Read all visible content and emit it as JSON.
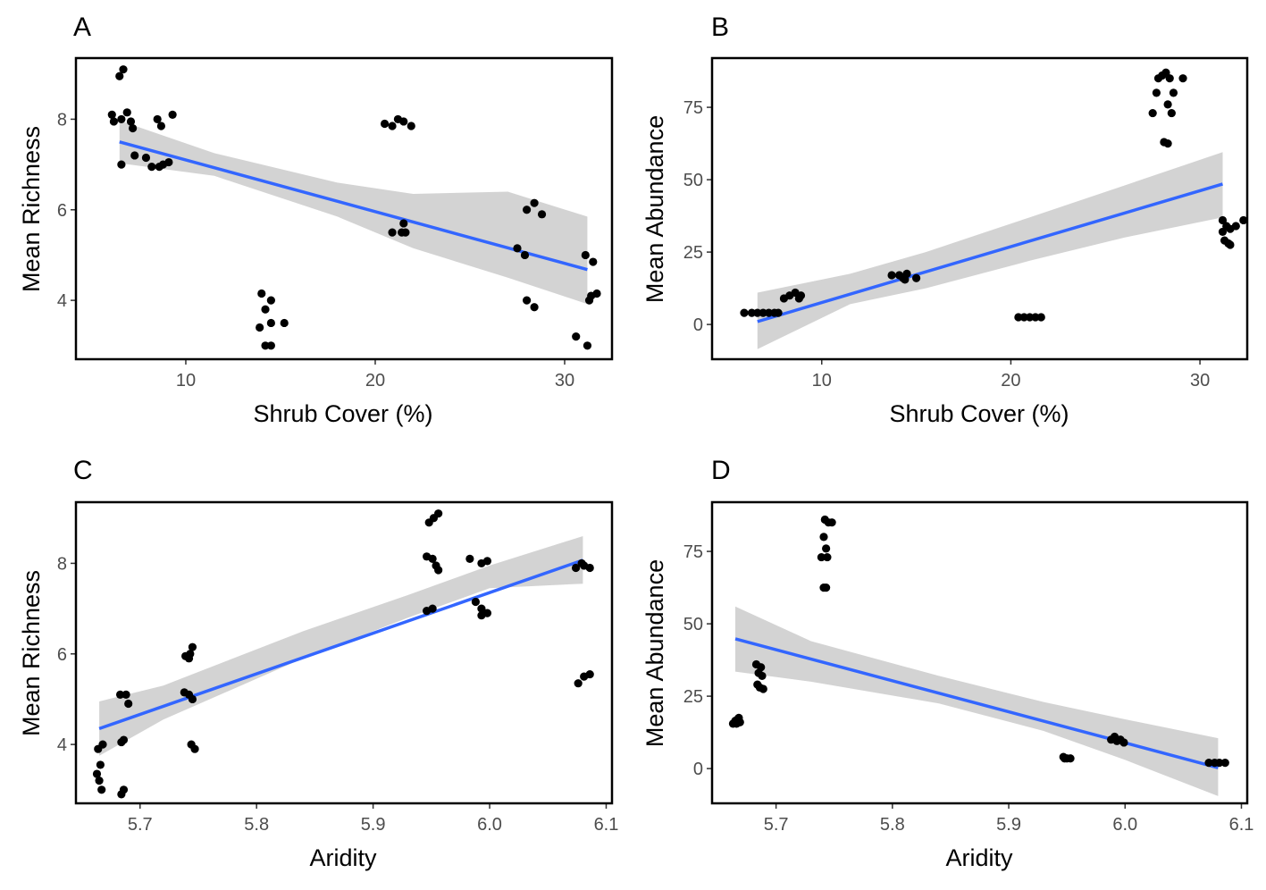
{
  "chart_data": [
    {
      "panel": "A",
      "type": "scatter",
      "xlabel": "Shrub Cover (%)",
      "ylabel": "Mean Richness",
      "xlim": [
        4.2,
        32.5
      ],
      "ylim": [
        2.7,
        9.35
      ],
      "xticks": [
        10,
        20,
        30
      ],
      "yticks": [
        4,
        6,
        8
      ],
      "points": [
        [
          6.1,
          8.1
        ],
        [
          6.2,
          7.95
        ],
        [
          6.6,
          8.0
        ],
        [
          6.5,
          8.95
        ],
        [
          6.7,
          9.1
        ],
        [
          6.9,
          8.15
        ],
        [
          7.1,
          7.95
        ],
        [
          7.2,
          7.8
        ],
        [
          6.6,
          7.0
        ],
        [
          7.3,
          7.2
        ],
        [
          7.9,
          7.15
        ],
        [
          8.2,
          6.95
        ],
        [
          8.6,
          6.95
        ],
        [
          8.8,
          7.0
        ],
        [
          9.1,
          7.05
        ],
        [
          8.5,
          8.0
        ],
        [
          8.7,
          7.85
        ],
        [
          9.3,
          8.1
        ],
        [
          20.5,
          7.9
        ],
        [
          20.9,
          7.85
        ],
        [
          21.2,
          8.0
        ],
        [
          21.5,
          7.95
        ],
        [
          21.9,
          7.85
        ],
        [
          20.9,
          5.5
        ],
        [
          21.4,
          5.5
        ],
        [
          21.6,
          5.5
        ],
        [
          21.5,
          5.7
        ],
        [
          14.0,
          4.15
        ],
        [
          14.2,
          3.8
        ],
        [
          14.5,
          4.0
        ],
        [
          13.9,
          3.4
        ],
        [
          14.5,
          3.5
        ],
        [
          15.2,
          3.5
        ],
        [
          14.2,
          3.0
        ],
        [
          14.5,
          3.0
        ],
        [
          27.5,
          5.15
        ],
        [
          27.9,
          5.0
        ],
        [
          28.0,
          6.0
        ],
        [
          28.4,
          6.15
        ],
        [
          28.8,
          5.9
        ],
        [
          28.0,
          4.0
        ],
        [
          28.4,
          3.85
        ],
        [
          31.1,
          5.0
        ],
        [
          31.5,
          4.85
        ],
        [
          31.3,
          4.0
        ],
        [
          31.4,
          4.1
        ],
        [
          31.7,
          4.15
        ],
        [
          30.6,
          3.2
        ],
        [
          31.2,
          3.0
        ]
      ],
      "fit": {
        "x": [
          6.5,
          31.2
        ],
        "y": [
          7.5,
          4.68
        ]
      },
      "ci_upper": [
        7.97,
        7.25,
        6.6,
        6.35,
        6.4,
        5.85
      ],
      "ci_lower": [
        7.03,
        6.75,
        5.85,
        5.15,
        4.5,
        3.92
      ],
      "ci_x": [
        6.5,
        11.5,
        18.0,
        22.0,
        27.0,
        31.2
      ]
    },
    {
      "panel": "B",
      "type": "scatter",
      "xlabel": "Shrub Cover (%)",
      "ylabel": "Mean Abundance",
      "xlim": [
        4.2,
        32.5
      ],
      "ylim": [
        -12,
        92
      ],
      "xticks": [
        10,
        20,
        30
      ],
      "yticks": [
        0,
        25,
        50,
        75
      ],
      "points": [
        [
          5.9,
          4
        ],
        [
          6.3,
          4
        ],
        [
          6.6,
          4
        ],
        [
          6.9,
          4
        ],
        [
          7.2,
          4
        ],
        [
          7.5,
          4
        ],
        [
          7.7,
          4
        ],
        [
          8.0,
          9
        ],
        [
          8.3,
          10
        ],
        [
          8.6,
          11
        ],
        [
          8.9,
          10
        ],
        [
          8.8,
          9
        ],
        [
          13.7,
          17
        ],
        [
          14.1,
          17
        ],
        [
          14.3,
          16
        ],
        [
          14.5,
          17.5
        ],
        [
          14.4,
          15.5
        ],
        [
          15.0,
          16
        ],
        [
          20.4,
          2.5
        ],
        [
          20.7,
          2.5
        ],
        [
          21.0,
          2.5
        ],
        [
          21.3,
          2.5
        ],
        [
          21.6,
          2.5
        ],
        [
          27.5,
          73
        ],
        [
          27.7,
          80
        ],
        [
          27.8,
          85
        ],
        [
          28.0,
          86
        ],
        [
          28.2,
          87
        ],
        [
          28.4,
          85
        ],
        [
          28.6,
          80
        ],
        [
          28.3,
          76
        ],
        [
          28.5,
          73
        ],
        [
          28.1,
          63
        ],
        [
          28.3,
          62.5
        ],
        [
          29.1,
          85
        ],
        [
          31.2,
          36
        ],
        [
          31.4,
          34
        ],
        [
          31.6,
          33
        ],
        [
          31.9,
          34
        ],
        [
          32.3,
          36
        ],
        [
          31.3,
          29
        ],
        [
          31.5,
          28
        ],
        [
          31.6,
          27.5
        ],
        [
          31.2,
          32
        ]
      ],
      "fit": {
        "x": [
          6.6,
          31.2
        ],
        "y": [
          1,
          48.5
        ]
      },
      "ci_upper": [
        11,
        17.5,
        25,
        37,
        48,
        59.5
      ],
      "ci_lower": [
        -8.5,
        7,
        12.5,
        22,
        30,
        37
      ],
      "ci_x": [
        6.6,
        11.5,
        15.5,
        21.0,
        26.0,
        31.2
      ]
    },
    {
      "panel": "C",
      "type": "scatter",
      "xlabel": "Aridity",
      "ylabel": "Mean Richness",
      "xlim": [
        5.645,
        6.105
      ],
      "ylim": [
        2.7,
        9.35
      ],
      "xticks": [
        5.7,
        5.8,
        5.9,
        6.0,
        6.1
      ],
      "yticks": [
        4,
        6,
        8
      ],
      "points": [
        [
          5.664,
          3.9
        ],
        [
          5.668,
          4.0
        ],
        [
          5.666,
          3.55
        ],
        [
          5.663,
          3.35
        ],
        [
          5.665,
          3.2
        ],
        [
          5.667,
          3.0
        ],
        [
          5.683,
          5.1
        ],
        [
          5.688,
          5.1
        ],
        [
          5.69,
          4.9
        ],
        [
          5.684,
          4.05
        ],
        [
          5.686,
          4.1
        ],
        [
          5.684,
          2.9
        ],
        [
          5.686,
          3.0
        ],
        [
          5.739,
          5.95
        ],
        [
          5.743,
          6.0
        ],
        [
          5.745,
          6.15
        ],
        [
          5.742,
          5.9
        ],
        [
          5.738,
          5.15
        ],
        [
          5.742,
          5.1
        ],
        [
          5.745,
          5.0
        ],
        [
          5.744,
          4.0
        ],
        [
          5.747,
          3.9
        ],
        [
          5.948,
          8.9
        ],
        [
          5.952,
          9.0
        ],
        [
          5.956,
          9.1
        ],
        [
          5.946,
          8.15
        ],
        [
          5.951,
          8.1
        ],
        [
          5.954,
          7.95
        ],
        [
          5.956,
          7.85
        ],
        [
          5.946,
          6.95
        ],
        [
          5.951,
          7.0
        ],
        [
          5.983,
          8.1
        ],
        [
          5.993,
          8.0
        ],
        [
          5.998,
          8.05
        ],
        [
          5.988,
          7.15
        ],
        [
          5.993,
          7.0
        ],
        [
          5.998,
          6.9
        ],
        [
          5.993,
          6.85
        ],
        [
          6.074,
          7.9
        ],
        [
          6.079,
          8.0
        ],
        [
          6.081,
          7.95
        ],
        [
          6.086,
          7.9
        ],
        [
          6.076,
          5.35
        ],
        [
          6.081,
          5.5
        ],
        [
          6.086,
          5.55
        ]
      ],
      "fit": {
        "x": [
          5.665,
          6.08
        ],
        "y": [
          4.35,
          8.07
        ]
      },
      "ci_upper": [
        4.95,
        5.3,
        6.5,
        7.3,
        7.95,
        8.6
      ],
      "ci_lower": [
        3.75,
        4.55,
        5.9,
        6.8,
        7.45,
        7.55
      ],
      "ci_x": [
        5.665,
        5.72,
        5.84,
        5.93,
        6.0,
        6.08
      ]
    },
    {
      "panel": "D",
      "type": "scatter",
      "xlabel": "Aridity",
      "ylabel": "Mean Abundance",
      "xlim": [
        5.645,
        6.105
      ],
      "ylim": [
        -12,
        92
      ],
      "xticks": [
        5.7,
        5.8,
        5.9,
        6.0,
        6.1
      ],
      "yticks": [
        0,
        25,
        50,
        75
      ],
      "points": [
        [
          5.663,
          15.5
        ],
        [
          5.665,
          16.5
        ],
        [
          5.667,
          17
        ],
        [
          5.669,
          16
        ],
        [
          5.666,
          15.5
        ],
        [
          5.668,
          17.5
        ],
        [
          5.683,
          36
        ],
        [
          5.685,
          33
        ],
        [
          5.688,
          32
        ],
        [
          5.684,
          29
        ],
        [
          5.686,
          28
        ],
        [
          5.689,
          27.5
        ],
        [
          5.687,
          35
        ],
        [
          5.739,
          73
        ],
        [
          5.741,
          80
        ],
        [
          5.742,
          86
        ],
        [
          5.745,
          85
        ],
        [
          5.743,
          76
        ],
        [
          5.744,
          73
        ],
        [
          5.748,
          85
        ],
        [
          5.741,
          62.5
        ],
        [
          5.743,
          62.5
        ],
        [
          5.947,
          4
        ],
        [
          5.95,
          3.5
        ],
        [
          5.953,
          3.5
        ],
        [
          5.948,
          3.5
        ],
        [
          5.988,
          10
        ],
        [
          5.991,
          11
        ],
        [
          5.993,
          9.5
        ],
        [
          5.996,
          10
        ],
        [
          5.999,
          9
        ],
        [
          6.072,
          2
        ],
        [
          6.077,
          2
        ],
        [
          6.081,
          2
        ],
        [
          6.086,
          2
        ]
      ],
      "fit": {
        "x": [
          5.665,
          6.08
        ],
        "y": [
          44.8,
          0.3
        ]
      },
      "ci_upper": [
        56,
        44,
        32,
        23,
        17,
        10.5
      ],
      "ci_lower": [
        33.5,
        30,
        22.5,
        13,
        3,
        -9.5
      ],
      "ci_x": [
        5.665,
        5.73,
        5.84,
        5.93,
        6.0,
        6.08
      ]
    }
  ]
}
